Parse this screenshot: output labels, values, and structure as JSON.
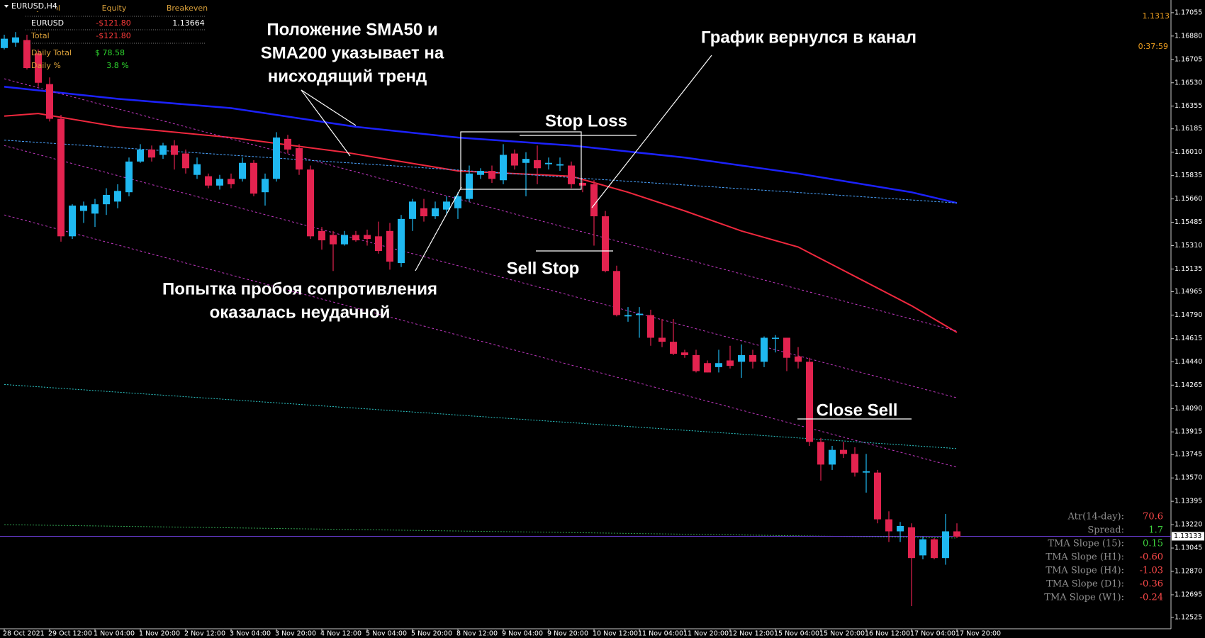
{
  "chart_data": {
    "type": "candlestick",
    "symbol": "EURUSD,H4",
    "categories": [
      "28 Oct 2021",
      null,
      null,
      null,
      "29 Oct 12:00",
      null,
      null,
      null,
      "1 Nov 04:00",
      null,
      null,
      null,
      "1 Nov 20:00",
      null,
      null,
      null,
      "2 Nov 12:00",
      null,
      null,
      null,
      "3 Nov 04:00",
      null,
      null,
      null,
      "3 Nov 20:00",
      null,
      null,
      null,
      "4 Nov 12:00",
      null,
      null,
      null,
      "5 Nov 04:00",
      null,
      null,
      null,
      "5 Nov 20:00",
      null,
      null,
      null,
      "8 Nov 12:00",
      null,
      null,
      null,
      "9 Nov 04:00",
      null,
      null,
      null,
      "9 Nov 20:00",
      null,
      null,
      null,
      "10 Nov 12:00",
      null,
      null,
      null,
      "11 Nov 04:00",
      null,
      null,
      null,
      "11 Nov 20:00",
      null,
      null,
      null,
      "12 Nov 12:00",
      null,
      null,
      null,
      "15 Nov 04:00",
      null,
      null,
      null,
      "15 Nov 20:00",
      null,
      null,
      null,
      "16 Nov 12:00",
      null,
      null,
      null,
      "17 Nov 04:00",
      null,
      null,
      null,
      "17 Nov 20:00"
    ],
    "open": [
      1.1679,
      1.1683,
      1.1685,
      1.1675,
      1.1652,
      1.1626,
      1.1538,
      1.1557,
      1.1555,
      1.1562,
      1.1564,
      1.1571,
      1.1594,
      1.1603,
      1.1599,
      1.1606,
      1.16,
      1.1584,
      1.1583,
      1.1576,
      1.1581,
      1.1581,
      1.1593,
      1.1571,
      1.1581,
      1.1611,
      1.1604,
      1.1588,
      1.1542,
      1.1539,
      1.1532,
      1.1539,
      1.1539,
      1.1538,
      1.1542,
      1.1518,
      1.1551,
      1.1559,
      1.1553,
      1.1558,
      1.1559,
      1.1566,
      1.1584,
      1.1587,
      1.158,
      1.16,
      1.1593,
      1.1595,
      1.1592,
      1.1591,
      1.1591,
      1.1578,
      1.1577,
      1.1553,
      1.1512,
      1.1478,
      1.1479,
      1.1479,
      1.1462,
      1.1459,
      1.1451,
      1.1449,
      1.1443,
      1.144,
      1.1445,
      1.1444,
      1.1449,
      1.1444,
      1.1462,
      1.1462,
      1.1448,
      1.1444,
      1.1384,
      1.1367,
      1.1378,
      1.1375,
      1.1361,
      1.1361,
      1.1326,
      1.1317,
      1.132,
      1.1299,
      1.1311,
      1.1297,
      1.1317
    ],
    "high": [
      1.1689,
      1.1691,
      1.1689,
      1.1678,
      1.1657,
      1.1629,
      1.1562,
      1.1564,
      1.1566,
      1.1574,
      1.1577,
      1.1597,
      1.1607,
      1.1606,
      1.1608,
      1.161,
      1.1603,
      1.1597,
      1.1585,
      1.1584,
      1.1585,
      1.1597,
      1.1595,
      1.1585,
      1.1616,
      1.1614,
      1.1607,
      1.1591,
      1.1545,
      1.1542,
      1.1542,
      1.1542,
      1.1543,
      1.1549,
      1.1548,
      1.1554,
      1.1566,
      1.1566,
      1.1564,
      1.1568,
      1.1571,
      1.1591,
      1.1589,
      1.1591,
      1.1607,
      1.1603,
      1.1601,
      1.1606,
      1.1597,
      1.1597,
      1.1594,
      1.1581,
      1.158,
      1.1557,
      1.1516,
      1.1485,
      1.1485,
      1.1483,
      1.1476,
      1.1476,
      1.1453,
      1.1453,
      1.1445,
      1.1453,
      1.1456,
      1.1457,
      1.1453,
      1.1463,
      1.1464,
      1.1462,
      1.1455,
      1.1447,
      1.1387,
      1.1381,
      1.1384,
      1.138,
      1.1375,
      1.1363,
      1.1332,
      1.1324,
      1.1323,
      1.1313,
      1.1312,
      1.133,
      1.1323
    ],
    "low": [
      1.1678,
      1.168,
      1.1663,
      1.165,
      1.1624,
      1.1534,
      1.1536,
      1.1548,
      1.1545,
      1.1554,
      1.1559,
      1.1568,
      1.1593,
      1.1594,
      1.1596,
      1.1588,
      1.1585,
      1.1581,
      1.1574,
      1.1573,
      1.1574,
      1.1579,
      1.1568,
      1.1561,
      1.1579,
      1.16,
      1.1584,
      1.1536,
      1.1528,
      1.1512,
      1.1531,
      1.1534,
      1.1531,
      1.1525,
      1.1513,
      1.1515,
      1.1542,
      1.1549,
      1.1551,
      1.1555,
      1.1551,
      1.1564,
      1.1581,
      1.1578,
      1.1577,
      1.1588,
      1.1568,
      1.1577,
      1.1588,
      1.1587,
      1.1574,
      1.1571,
      1.1531,
      1.1511,
      1.1478,
      1.1474,
      1.1462,
      1.1456,
      1.1455,
      1.1449,
      1.1447,
      1.1436,
      1.1436,
      1.1436,
      1.1439,
      1.1432,
      1.1439,
      1.144,
      1.1451,
      1.1437,
      1.1439,
      1.1381,
      1.1355,
      1.1363,
      1.1372,
      1.1358,
      1.1346,
      1.1323,
      1.1309,
      1.1309,
      1.1261,
      1.1296,
      1.1296,
      1.1292,
      1.1312
    ],
    "close": [
      1.1686,
      1.1687,
      1.1664,
      1.1653,
      1.1626,
      1.1538,
      1.1561,
      1.1561,
      1.1562,
      1.1569,
      1.1572,
      1.1594,
      1.1603,
      1.1597,
      1.1606,
      1.1599,
      1.1589,
      1.1592,
      1.1576,
      1.1581,
      1.1577,
      1.1593,
      1.157,
      1.1581,
      1.1612,
      1.1603,
      1.1588,
      1.1538,
      1.1535,
      1.1532,
      1.1539,
      1.1535,
      1.1536,
      1.1527,
      1.1519,
      1.1551,
      1.1564,
      1.1553,
      1.1559,
      1.1564,
      1.1568,
      1.1585,
      1.1587,
      1.1581,
      1.1599,
      1.1591,
      1.1596,
      1.1589,
      1.1593,
      1.1592,
      1.1577,
      1.1576,
      1.1553,
      1.1512,
      1.1479,
      1.1479,
      1.148,
      1.1462,
      1.1459,
      1.145,
      1.1449,
      1.1437,
      1.1436,
      1.1443,
      1.1441,
      1.1449,
      1.1444,
      1.1462,
      1.1462,
      1.1447,
      1.1444,
      1.1384,
      1.1367,
      1.1378,
      1.1375,
      1.1361,
      1.1362,
      1.1326,
      1.1317,
      1.1321,
      1.1297,
      1.1311,
      1.1297,
      1.1317,
      1.1313
    ],
    "up_color": "#1fb8f0",
    "down_color": "#e3234f",
    "ylim": [
      1.1244,
      1.1715
    ],
    "yticks": [
      1.17055,
      {
        "value": 1.1688,
        "label": "1.16880"
      },
      1.16705,
      {
        "value": 1.1653,
        "label": "1.16530"
      },
      1.16355,
      1.16185,
      {
        "value": 1.1601,
        "label": "1.16010"
      },
      1.15835,
      {
        "value": 1.1566,
        "label": "1.15660"
      },
      1.15485,
      {
        "value": 1.1531,
        "label": "1.15310"
      },
      1.15135,
      1.14965,
      {
        "value": 1.1479,
        "label": "1.14790"
      },
      1.14615,
      {
        "value": 1.1444,
        "label": "1.14440"
      },
      1.14265,
      {
        "value": 1.1409,
        "label": "1.14090"
      },
      1.13915,
      1.13745,
      {
        "value": 1.1357,
        "label": "1.13570"
      },
      1.13395,
      {
        "value": 1.1322,
        "label": "1.13220"
      },
      1.13045,
      {
        "value": 1.1287,
        "label": "1.12870"
      },
      1.12695,
      1.12525
    ],
    "lines": [
      {
        "color": "#1c22ff",
        "width": 2.5,
        "dash": "none",
        "x": [
          0,
          10,
          20,
          31,
          40,
          50,
          60,
          70,
          80,
          84
        ],
        "values": [
          1.165,
          1.1641,
          1.1634,
          1.162,
          1.1612,
          1.1606,
          1.1597,
          1.1585,
          1.1571,
          1.1563
        ]
      },
      {
        "color": "#f0283e",
        "width": 2,
        "dash": "none",
        "x": [
          0,
          3,
          10,
          20,
          30,
          40,
          50,
          55,
          60,
          65,
          70,
          75,
          80,
          84
        ],
        "values": [
          1.1628,
          1.163,
          1.162,
          1.1612,
          1.1601,
          1.1587,
          1.1583,
          1.1571,
          1.1557,
          1.1542,
          1.153,
          1.1508,
          1.1486,
          1.1466
        ]
      },
      {
        "color": "#c238c2",
        "width": 1,
        "dash": "3,3",
        "x": [
          0,
          84
        ],
        "values": [
          1.1656,
          1.1467
        ]
      },
      {
        "color": "#c238c2",
        "width": 1,
        "dash": "3,3",
        "x": [
          0,
          84
        ],
        "values": [
          1.1606,
          1.1417
        ]
      },
      {
        "color": "#c238c2",
        "width": 1,
        "dash": "3,3",
        "x": [
          0,
          84
        ],
        "values": [
          1.1554,
          1.1365
        ]
      },
      {
        "color": "#4aa3ff",
        "width": 1,
        "dash": "3,2",
        "x": [
          0,
          84
        ],
        "values": [
          1.161,
          1.1563
        ]
      },
      {
        "color": "#2cc8c8",
        "width": 1,
        "dash": "2,2",
        "x": [
          0,
          84
        ],
        "values": [
          1.1427,
          1.1379
        ]
      },
      {
        "color": "#2f9d4e",
        "width": 1,
        "dash": "2,2",
        "x": [
          0,
          84
        ],
        "values": [
          1.1322,
          1.1312
        ]
      }
    ],
    "bid": 1.13133,
    "bid_color": "#7040e0",
    "annotations": [
      {
        "lines": [
          "Положение SMA50 и",
          "SMA200 указывает на",
          "нисходящий тренд"
        ]
      },
      {
        "lines": [
          "График вернулся в канал"
        ]
      },
      {
        "lines": [
          "Stop Loss"
        ]
      },
      {
        "lines": [
          "Sell Stop"
        ]
      },
      {
        "lines": [
          "Попытка пробоя сопротивления",
          "оказалась неудачной"
        ]
      },
      {
        "lines": [
          "Close Sell"
        ]
      }
    ]
  },
  "quote": {
    "price": 1.1313,
    "timer": "0:37:59"
  },
  "account": {
    "header": [
      "Symbol",
      "Equity",
      "Breakeven"
    ],
    "rows": [
      [
        "EURUSD",
        "-$121.80",
        "1.13664"
      ],
      [
        "Total",
        "-$121.80"
      ]
    ],
    "daily": [
      [
        "Daily Total",
        "$ 78.58"
      ],
      [
        "Daily %",
        "3.8 %"
      ]
    ]
  },
  "indicators": [
    {
      "label": "Atr(14-day):",
      "value": "70.6",
      "color": "#ff4a4a"
    },
    {
      "label": "Spread:",
      "value": "1.7",
      "color": "#3fd43f"
    },
    {
      "label": "TMA Slope (15):",
      "value": "0.15",
      "color": "#3fd43f"
    },
    {
      "label": "TMA Slope (H1):",
      "value": "-0.60",
      "color": "#ff4a4a"
    },
    {
      "label": "TMA Slope (H4):",
      "value": "-1.03",
      "color": "#ff4a4a"
    },
    {
      "label": "TMA Slope (D1):",
      "value": "-0.36",
      "color": "#ff4a4a"
    },
    {
      "label": "TMA Slope (W1):",
      "value": "-0.24",
      "color": "#ff4a4a"
    }
  ]
}
